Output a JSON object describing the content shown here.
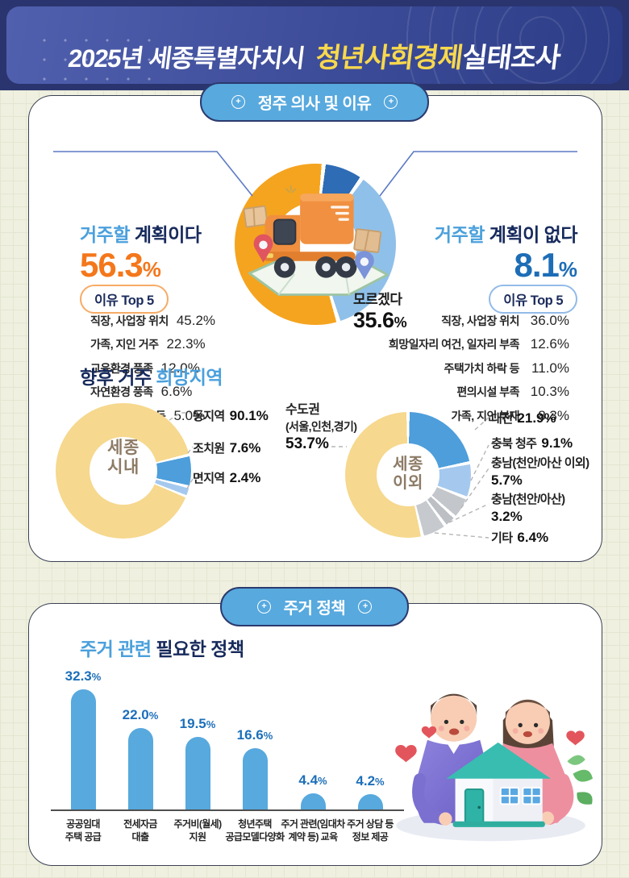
{
  "units": {
    "percent": "%"
  },
  "palette": {
    "header_bg": "#3c4b96",
    "header_highlight": "#f8d84d",
    "badge_blue": "#57a9de",
    "navy": "#172a5c",
    "accent_blue": "#4aa0dc",
    "orange": "#f4771b",
    "value_blue": "#1d6db6",
    "bar_blue": "#57a9de",
    "donut_orange": "#f5a41f",
    "donut_dark_blue": "#2e6cb5",
    "donut_light_blue": "#8fc0e9",
    "donut_yellow": "#f6d88e",
    "gray": "#bfc3c8"
  },
  "header": {
    "title_prefix": "2025년 세종특별자치시",
    "title_highlight": "청년사회경제",
    "title_suffix": "실태조사"
  },
  "section1": {
    "badge": "정주 의사 및 이유",
    "plan_yes": {
      "title_accent": "거주할",
      "title_rest": "계획이다",
      "value": "56.3",
      "top5_label": "이유 Top 5",
      "reasons": [
        {
          "label": "직장, 사업장 위치",
          "value": "45.2%"
        },
        {
          "label": "가족, 지인 거주",
          "value": "22.3%"
        },
        {
          "label": "교육환경 풍족",
          "value": "12.0%"
        },
        {
          "label": "자연환경 풍족",
          "value": "6.6%"
        },
        {
          "label": "주택가치 상승 등",
          "value": "5.0%"
        }
      ]
    },
    "plan_no": {
      "title_accent": "거주할",
      "title_rest": "계획이 없다",
      "value": "8.1",
      "top5_label": "이유 Top 5",
      "reasons": [
        {
          "label": "직장, 사업장 위치",
          "value": "36.0%"
        },
        {
          "label": "희망일자리 여건, 일자리 부족",
          "value": "12.6%"
        },
        {
          "label": "주택가치 하락 등",
          "value": "11.0%"
        },
        {
          "label": "편의시설 부족",
          "value": "10.3%"
        },
        {
          "label": "가족, 지인 부재",
          "value": "8.3%"
        }
      ]
    },
    "unknown": {
      "label": "모르겠다",
      "value": "35.6"
    }
  },
  "region": {
    "title_main": "향후 거주",
    "title_accent": "희망지역",
    "inside": {
      "center_line1": "세종",
      "center_line2": "시내",
      "items": [
        {
          "label": "동지역",
          "value": "90.1%"
        },
        {
          "label": "조치원",
          "value": "7.6%"
        },
        {
          "label": "면지역",
          "value": "2.4%"
        }
      ]
    },
    "outside": {
      "center_line1": "세종",
      "center_line2": "이외",
      "metro": {
        "label": "수도권",
        "sub": "(서울,인천,경기)",
        "value": "53.7%"
      },
      "items": [
        {
          "label": "대전",
          "value": "21.9%"
        },
        {
          "label": "충북 청주",
          "value": "9.1%"
        },
        {
          "label": "충남(천안/아산 이외)",
          "value": "5.7%"
        },
        {
          "label": "충남(천안/아산)",
          "value": "3.2%"
        },
        {
          "label": "기타",
          "value": "6.4%"
        }
      ]
    }
  },
  "section2": {
    "badge": "주거 정책",
    "title_accent": "주거 관련",
    "title_rest": "필요한 정책",
    "bars": [
      {
        "line1": "공공임대",
        "line2": "주택 공급",
        "value": "32.3"
      },
      {
        "line1": "전세자금",
        "line2": "대출",
        "value": "22.0"
      },
      {
        "line1": "주거비(월세)",
        "line2": "지원",
        "value": "19.5"
      },
      {
        "line1": "청년주택",
        "line2": "공급모델다양화",
        "value": "16.6"
      },
      {
        "line1": "주거 관련(임대차",
        "line2": "계약 등) 교육",
        "value": "4.4"
      },
      {
        "line1": "주거 상담 등",
        "line2": "정보 제공",
        "value": "4.2"
      }
    ]
  },
  "chart_data": [
    {
      "type": "pie",
      "title": "정주 의사 및 이유",
      "donut": true,
      "start_deg": 6,
      "gap_deg": 3,
      "slices": [
        {
          "label": "거주할 계획이 없다",
          "value": 8.1,
          "color": "#2e6cb5"
        },
        {
          "label": "모르겠다",
          "value": 35.6,
          "color": "#8fc0e9"
        },
        {
          "label": "거주할 계획이다",
          "value": 56.3,
          "color": "#f5a41f"
        }
      ]
    },
    {
      "type": "pie",
      "title": "향후 거주 희망지역 - 세종 시내",
      "donut": true,
      "center_label": "세종 시내",
      "start_deg": 112,
      "gap_deg": 2.5,
      "slices": [
        {
          "label": "동지역",
          "value": 90.1,
          "color": "#f6d88e"
        },
        {
          "label": "조치원",
          "value": 7.6,
          "color": "#4d9edb"
        },
        {
          "label": "면지역",
          "value": 2.4,
          "color": "#a5c9ee"
        }
      ]
    },
    {
      "type": "pie",
      "title": "향후 거주 희망지역 - 세종 이외",
      "donut": true,
      "center_label": "세종 이외",
      "start_deg": 0,
      "gap_deg": 3,
      "slices": [
        {
          "label": "대전",
          "value": 21.9,
          "color": "#4d9edb"
        },
        {
          "label": "충북 청주",
          "value": 9.1,
          "color": "#a5c9ee"
        },
        {
          "label": "충남(천안/아산 이외)",
          "value": 5.7,
          "color": "#c3c7cc"
        },
        {
          "label": "충남(천안/아산)",
          "value": 3.2,
          "color": "#bcc0c5"
        },
        {
          "label": "기타",
          "value": 6.4,
          "color": "#c6cace"
        },
        {
          "label": "수도권(서울,인천,경기)",
          "value": 53.7,
          "color": "#f6d88e"
        }
      ]
    },
    {
      "type": "bar",
      "title": "주거 관련 필요한 정책",
      "categories": [
        "공공임대 주택 공급",
        "전세자금 대출",
        "주거비(월세) 지원",
        "청년주택 공급모델다양화",
        "주거 관련(임대차 계약 등) 교육",
        "주거 상담 등 정보 제공"
      ],
      "values": [
        32.3,
        22.0,
        19.5,
        16.6,
        4.4,
        4.2
      ],
      "bar_color": "#57a9de",
      "value_color": "#1c6fb9",
      "xlabel": "",
      "ylabel": "",
      "ylim": [
        0,
        35
      ],
      "grid": false,
      "legend": false
    }
  ]
}
